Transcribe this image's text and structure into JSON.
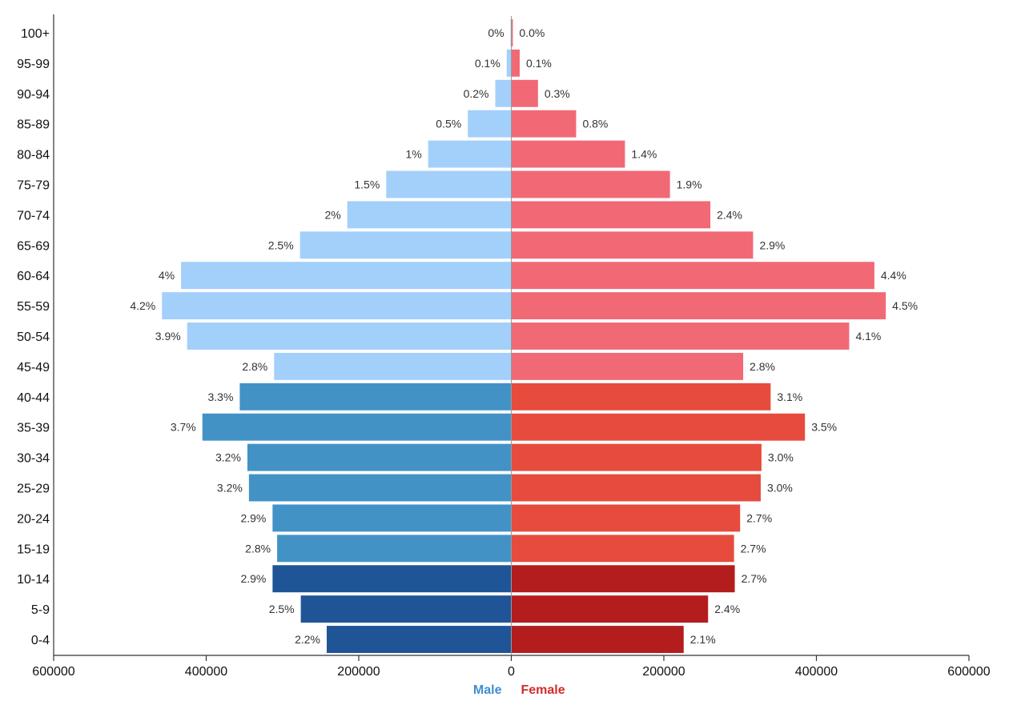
{
  "chart_data": {
    "type": "bar",
    "orientation": "horizontal-population-pyramid",
    "categories": [
      "0-4",
      "5-9",
      "10-14",
      "15-19",
      "20-24",
      "25-29",
      "30-34",
      "35-39",
      "40-44",
      "45-49",
      "50-54",
      "55-59",
      "60-64",
      "65-69",
      "70-74",
      "75-79",
      "80-84",
      "85-89",
      "90-94",
      "95-99",
      "100+"
    ],
    "series": [
      {
        "name": "Male",
        "side": "left",
        "values": [
          242000,
          276000,
          313000,
          307000,
          313000,
          344000,
          346000,
          405000,
          356000,
          311000,
          425000,
          458000,
          433000,
          277000,
          215000,
          164000,
          109000,
          57000,
          21000,
          6000,
          1000
        ],
        "percent_labels": [
          "2.2%",
          "2.5%",
          "2.9%",
          "2.8%",
          "2.9%",
          "3.2%",
          "3.2%",
          "3.7%",
          "3.3%",
          "2.8%",
          "3.9%",
          "4.2%",
          "4%",
          "2.5%",
          "2%",
          "1.5%",
          "1%",
          "0.5%",
          "0.2%",
          "0.1%",
          "0%"
        ]
      },
      {
        "name": "Female",
        "side": "right",
        "values": [
          226000,
          258000,
          293000,
          292000,
          300000,
          327000,
          328000,
          385000,
          340000,
          304000,
          443000,
          491000,
          476000,
          317000,
          261000,
          208000,
          149000,
          85000,
          35000,
          11000,
          2000
        ],
        "percent_labels": [
          "2.1%",
          "2.4%",
          "2.7%",
          "2.7%",
          "2.7%",
          "3.0%",
          "3.0%",
          "3.5%",
          "3.1%",
          "2.8%",
          "4.1%",
          "4.5%",
          "4.4%",
          "2.9%",
          "2.4%",
          "1.9%",
          "1.4%",
          "0.8%",
          "0.3%",
          "0.1%",
          "0.0%"
        ]
      }
    ],
    "color_groups": {
      "male": [
        "#1f5597",
        "#4292c6",
        "#a3cffb"
      ],
      "female": [
        "#b41d1e",
        "#e64b3d",
        "#f16975"
      ],
      "group_ranges": [
        "0-14",
        "15-44",
        "45+"
      ]
    },
    "x_ticks": [
      600000,
      400000,
      200000,
      0,
      200000,
      400000,
      600000
    ],
    "xlim": [
      -600000,
      600000
    ],
    "legend": [
      {
        "label": "Male",
        "color": "#3f8ed0"
      },
      {
        "label": "Female",
        "color": "#d12c2c"
      }
    ],
    "legend_position": "bottom-center",
    "grid": false
  }
}
